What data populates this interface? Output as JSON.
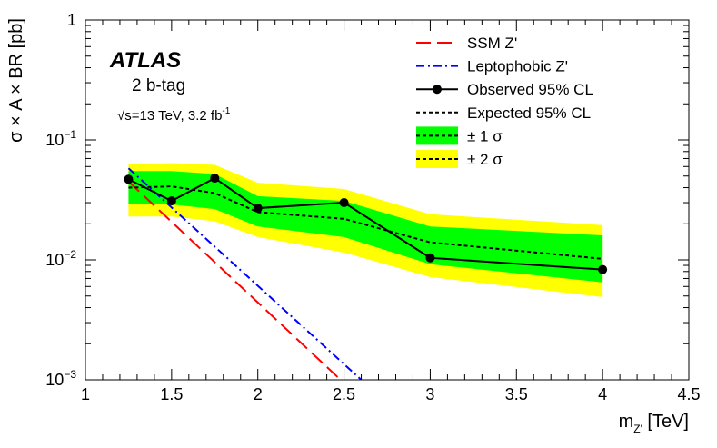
{
  "chart_data": {
    "type": "line",
    "experiment": "ATLAS",
    "category": "2 b-tag",
    "energy_label": "s=13 TeV,  3.2 fb",
    "energy_prefix": "√",
    "lumi_exp": "-1",
    "ylabel": "σ × A × BR [pb]",
    "xlabel_main": "m",
    "xlabel_sub": "Z'",
    "xlabel_unit": " [TeV]",
    "xlim": [
      1,
      4.5
    ],
    "ylim": [
      0.001,
      1
    ],
    "yscale": "log",
    "xticks": [
      1,
      1.5,
      2,
      2.5,
      3,
      3.5,
      4,
      4.5
    ],
    "xtick_labels": [
      "1",
      "1.5",
      "2",
      "2.5",
      "3",
      "3.5",
      "4",
      "4.5"
    ],
    "yticks": [
      {
        "value": 1,
        "base": "1",
        "exp": ""
      },
      {
        "value": 0.1,
        "base": "10",
        "exp": "−1"
      },
      {
        "value": 0.01,
        "base": "10",
        "exp": "−2"
      },
      {
        "value": 0.001,
        "base": "10",
        "exp": "−3"
      }
    ],
    "band_2sigma": {
      "name": "± 2 σ",
      "x": [
        1.25,
        1.5,
        1.75,
        2,
        2.5,
        3,
        4
      ],
      "lower": [
        0.023,
        0.023,
        0.021,
        0.0155,
        0.0115,
        0.0072,
        0.0049
      ],
      "upper": [
        0.063,
        0.064,
        0.062,
        0.044,
        0.039,
        0.024,
        0.0195
      ],
      "color": "#ffff00"
    },
    "band_1sigma": {
      "name": "± 1 σ",
      "x": [
        1.25,
        1.5,
        1.75,
        2,
        2.5,
        3,
        4
      ],
      "lower": [
        0.029,
        0.029,
        0.0265,
        0.019,
        0.0155,
        0.0092,
        0.0065
      ],
      "upper": [
        0.055,
        0.055,
        0.052,
        0.034,
        0.031,
        0.019,
        0.016
      ],
      "color": "#00ff00"
    },
    "series": [
      {
        "name": "SSM Z'",
        "style": "long-dash",
        "color": "#ff0000",
        "x": [
          1.25,
          2.48
        ],
        "values": [
          0.045,
          0.001
        ]
      },
      {
        "name": "Leptophobic Z'",
        "style": "dash-dot",
        "color": "#0000ff",
        "x": [
          1.25,
          2.6
        ],
        "values": [
          0.058,
          0.001
        ]
      },
      {
        "name": "Observed 95% CL",
        "style": "solid-markers",
        "color": "#000000",
        "x": [
          1.25,
          1.5,
          1.75,
          2,
          2.5,
          3,
          4
        ],
        "values": [
          0.047,
          0.031,
          0.048,
          0.027,
          0.03,
          0.0104,
          0.0083
        ]
      },
      {
        "name": "Expected 95% CL",
        "style": "dotted",
        "color": "#000000",
        "x": [
          1.25,
          1.5,
          1.75,
          2,
          2.5,
          3,
          4
        ],
        "values": [
          0.04,
          0.041,
          0.036,
          0.025,
          0.022,
          0.014,
          0.0102
        ]
      }
    ],
    "legend": [
      {
        "label": "SSM Z'",
        "kind": "long-dash",
        "color": "#ff0000"
      },
      {
        "label": "Leptophobic Z'",
        "kind": "dash-dot",
        "color": "#0000ff"
      },
      {
        "label": "Observed 95% CL",
        "kind": "solid-markers",
        "color": "#000000"
      },
      {
        "label": "Expected 95% CL",
        "kind": "dotted",
        "color": "#000000"
      },
      {
        "label": "± 1 σ",
        "kind": "band",
        "color": "#00ff00"
      },
      {
        "label": "± 2 σ",
        "kind": "band",
        "color": "#ffff00"
      }
    ],
    "legend_position": "top-right"
  }
}
